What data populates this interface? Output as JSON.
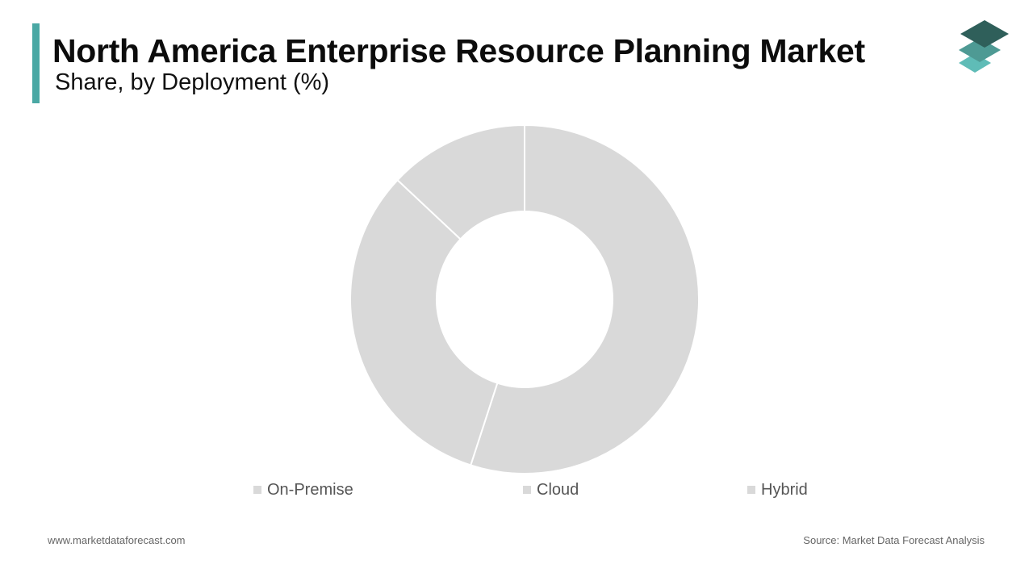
{
  "header": {
    "title": "North America Enterprise Resource Planning Market",
    "subtitle": "Share, by Deployment (%)"
  },
  "colors": {
    "accent": "#4aa8a4",
    "slice_fill": "#d9d9d9",
    "slice_border": "#ffffff",
    "logo_top": "#2f5f5a",
    "logo_middle": "#4e9a94",
    "logo_bottom": "#5fbcb7"
  },
  "logo": {
    "icon": "stacked-layers-icon"
  },
  "chart_data": {
    "type": "pie",
    "donut": true,
    "title": "North America Enterprise Resource Planning Market",
    "subtitle": "Share, by Deployment (%)",
    "categories": [
      "On-Premise",
      "Cloud",
      "Hybrid"
    ],
    "values": [
      55,
      32,
      13
    ],
    "legend_position": "bottom"
  },
  "footer": {
    "website": "www.marketdataforecast.com",
    "source": "Source: Market Data Forecast Analysis"
  }
}
